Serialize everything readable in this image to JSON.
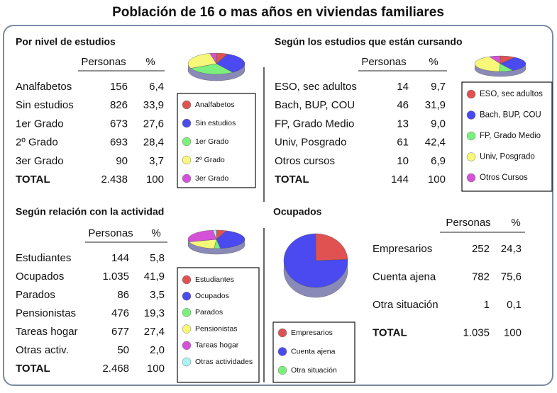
{
  "title": "Población de 16 o mas años en viviendas familiares",
  "panels": [
    {
      "title": "Por nivel de estudios",
      "headers": [
        "Personas",
        "%"
      ],
      "rows": [
        {
          "label": "Analfabetos",
          "persons": "156",
          "pct": {
            "value": 6.4,
            "label": "6,4"
          }
        },
        {
          "label": "Sin estudios",
          "persons": "826",
          "pct": {
            "value": 33.9,
            "label": "33,9"
          }
        },
        {
          "label": "1er Grado",
          "persons": "673",
          "pct": {
            "value": 27.6,
            "label": "27,6"
          }
        },
        {
          "label": "2º Grado",
          "persons": "693",
          "pct": {
            "value": 28.4,
            "label": "28,4"
          }
        },
        {
          "label": "3er Grado",
          "persons": "90",
          "pct": {
            "value": 3.7,
            "label": "3,7"
          }
        }
      ],
      "total": {
        "label": "TOTAL",
        "persons": "2.438",
        "pct": "100"
      },
      "legend": [
        "Analfabetos",
        "Sin estudios",
        "1er Grado",
        "2º Grado",
        "3er Grado"
      ],
      "colors": [
        "#e05252",
        "#4a4af0",
        "#7cf07c",
        "#f7f77a",
        "#d452d8"
      ]
    },
    {
      "title": "Según los estudios que están cursando",
      "headers": [
        "Personas",
        "%"
      ],
      "rows": [
        {
          "label": "ESO, sec adultos",
          "persons": "14",
          "pct": {
            "value": 9.7,
            "label": "9,7"
          }
        },
        {
          "label": "Bach, BUP, COU",
          "persons": "46",
          "pct": {
            "value": 31.9,
            "label": "31,9"
          }
        },
        {
          "label": "FP, Grado Medio",
          "persons": "13",
          "pct": {
            "value": 9.0,
            "label": "9,0"
          }
        },
        {
          "label": "Univ, Posgrado",
          "persons": "61",
          "pct": {
            "value": 42.4,
            "label": "42,4"
          }
        },
        {
          "label": "Otros cursos",
          "persons": "10",
          "pct": {
            "value": 6.9,
            "label": "6,9"
          }
        }
      ],
      "total": {
        "label": "TOTAL",
        "persons": "144",
        "pct": "100"
      },
      "legend": [
        "ESO, sec adultos",
        "Bach, BUP, COU",
        "FP, Grado Medio",
        "Univ, Posgrado",
        "Otros Cursos"
      ],
      "colors": [
        "#e05252",
        "#4a4af0",
        "#7cf07c",
        "#f7f77a",
        "#d452d8"
      ]
    },
    {
      "title": "Según relación con la actividad",
      "headers": [
        "Personas",
        "%"
      ],
      "rows": [
        {
          "label": "Estudiantes",
          "persons": "144",
          "pct": {
            "value": 5.8,
            "label": "5,8"
          }
        },
        {
          "label": "Ocupados",
          "persons": "1.035",
          "pct": {
            "value": 41.9,
            "label": "41,9"
          }
        },
        {
          "label": "Parados",
          "persons": "86",
          "pct": {
            "value": 3.5,
            "label": "3,5"
          }
        },
        {
          "label": "Pensionistas",
          "persons": "476",
          "pct": {
            "value": 19.3,
            "label": "19,3"
          }
        },
        {
          "label": "Tareas hogar",
          "persons": "677",
          "pct": {
            "value": 27.4,
            "label": "27,4"
          }
        },
        {
          "label": "Otras activ.",
          "persons": "50",
          "pct": {
            "value": 2.0,
            "label": "2,0"
          }
        }
      ],
      "total": {
        "label": "TOTAL",
        "persons": "2.468",
        "pct": "100"
      },
      "legend": [
        "Estudiantes",
        "Ocupados",
        "Parados",
        "Pensionistas",
        "Tareas hogar",
        "Otras actividades"
      ],
      "colors": [
        "#e05252",
        "#4a4af0",
        "#7cf07c",
        "#f7f77a",
        "#d452d8",
        "#aaf4f4"
      ]
    },
    {
      "title": "Ocupados",
      "headers": [
        "Personas",
        "%"
      ],
      "rows": [
        {
          "label": "Empresarios",
          "persons": "252",
          "pct": {
            "value": 24.3,
            "label": "24,3"
          }
        },
        {
          "label": "Cuenta ajena",
          "persons": "782",
          "pct": {
            "value": 75.6,
            "label": "75,6"
          }
        },
        {
          "label": "Otra situación",
          "persons": "1",
          "pct": {
            "value": 0.1,
            "label": "0,1"
          }
        }
      ],
      "total": {
        "label": "TOTAL",
        "persons": "1.035",
        "pct": "100"
      },
      "legend": [
        "Empresarios",
        "Cuenta ajena",
        "Otra situación"
      ],
      "colors": [
        "#e05252",
        "#4a4af0",
        "#7cf07c"
      ]
    }
  ]
}
